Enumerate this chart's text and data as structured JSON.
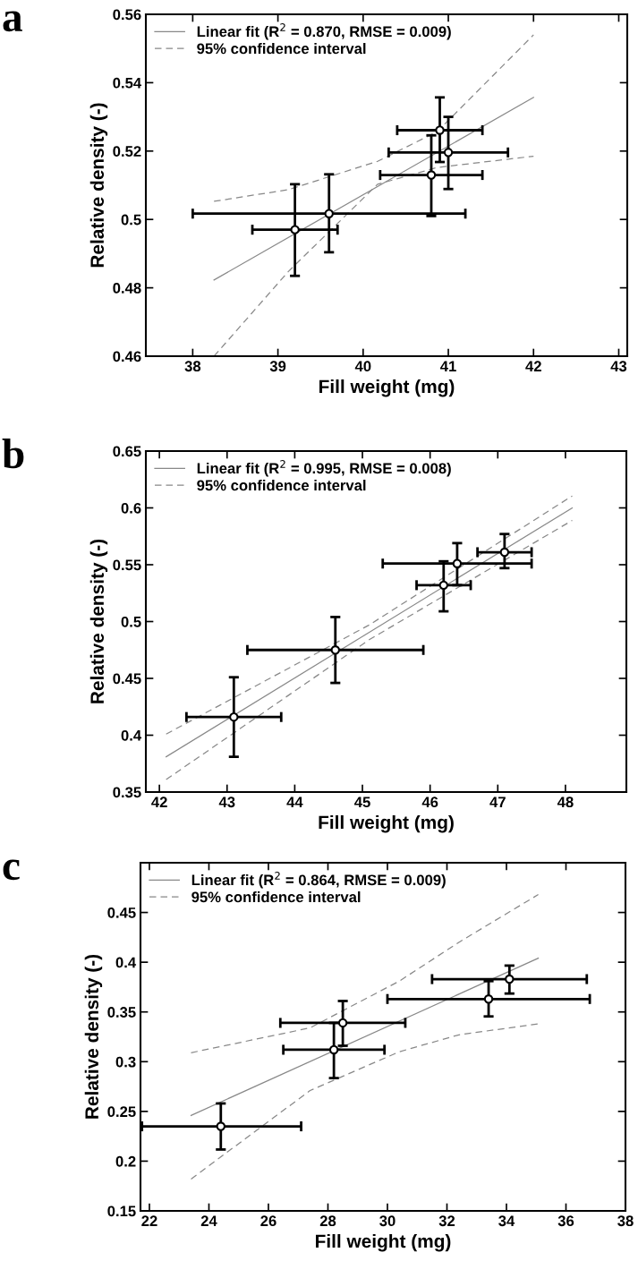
{
  "chart_data": [
    {
      "type": "scatter",
      "annotations": [
        "a"
      ],
      "xlabel": "Fill weight (mg)",
      "ylabel": "Relative density (-)",
      "xlim": [
        37.45,
        43.1
      ],
      "xticks": [
        38,
        39,
        40,
        41,
        42,
        43
      ],
      "ylim": [
        0.46,
        0.56
      ],
      "yticks": [
        0.46,
        0.48,
        0.5,
        0.52,
        0.54,
        0.56
      ],
      "legend": "top left",
      "grid": false,
      "series": [
        {
          "type": "line",
          "name": "Linear fit (R$^{2}$ = 0.870, RMSE = 0.009)",
          "color": "#888888",
          "line_style": "solid",
          "marker": "none",
          "x": [
            38.25,
            42.0
          ],
          "values": [
            0.4823,
            0.5357
          ]
        },
        {
          "type": "line",
          "name": "95% confidence interval",
          "color": "#888888",
          "line_style": "dashed",
          "marker": "none",
          "x": [
            38.25,
            39.12,
            40.17,
            40.87,
            42.0
          ],
          "values": [
            0.5053,
            0.5087,
            0.517,
            0.5257,
            0.554
          ]
        },
        {
          "type": "line",
          "color": "#888888",
          "line_style": "dashed",
          "marker": "none",
          "x": [
            38.25,
            39.12,
            40.17,
            40.87,
            42.0
          ],
          "values": [
            0.46,
            0.4847,
            0.5103,
            0.5152,
            0.5185
          ]
        },
        {
          "color": "#000000",
          "marker": "circle",
          "x": [
            39.2,
            39.6,
            40.8,
            41.0,
            40.9
          ],
          "values": [
            0.497,
            0.5017,
            0.513,
            0.5196,
            0.5261
          ],
          "errors": [
            [
              0.4835,
              0.5103
            ],
            [
              0.4904,
              0.5132
            ],
            [
              0.501,
              0.5246
            ],
            [
              0.5089,
              0.53
            ],
            [
              0.5168,
              0.5357
            ]
          ],
          "xerrors": [
            [
              38.7,
              39.7
            ],
            [
              38.0,
              41.2
            ],
            [
              40.2,
              41.4
            ],
            [
              40.3,
              41.7
            ],
            [
              40.4,
              41.4
            ]
          ]
        }
      ]
    },
    {
      "type": "scatter",
      "annotations": [
        "b"
      ],
      "xlabel": "Fill weight (mg)",
      "ylabel": "Relative density (-)",
      "xlim": [
        41.8,
        48.9
      ],
      "xticks": [
        42,
        43,
        44,
        45,
        46,
        47,
        48
      ],
      "ylim": [
        0.35,
        0.65
      ],
      "yticks": [
        0.35,
        0.4,
        0.45,
        0.5,
        0.55,
        0.6,
        0.65
      ],
      "legend": "top left",
      "grid": false,
      "series": [
        {
          "type": "line",
          "name": "Linear fit (R$^{2}$ = 0.995, RMSE = 0.008)",
          "color": "#888888",
          "line_style": "solid",
          "marker": "none",
          "x": [
            42.1,
            48.1
          ],
          "values": [
            0.381,
            0.6
          ]
        },
        {
          "type": "line",
          "name": "95% confidence interval",
          "color": "#888888",
          "line_style": "dashed",
          "marker": "none",
          "x": [
            42.1,
            45.1,
            48.1
          ],
          "values": [
            0.401,
            0.497,
            0.6105
          ]
        },
        {
          "type": "line",
          "color": "#888888",
          "line_style": "dashed",
          "marker": "none",
          "x": [
            42.1,
            45.1,
            48.1
          ],
          "values": [
            0.361,
            0.484,
            0.589
          ]
        },
        {
          "color": "#000000",
          "marker": "circle",
          "x": [
            43.1,
            44.6,
            46.2,
            46.4,
            47.1
          ],
          "values": [
            0.416,
            0.475,
            0.532,
            0.551,
            0.561
          ],
          "errors": [
            [
              0.381,
              0.451
            ],
            [
              0.446,
              0.504
            ],
            [
              0.509,
              0.553
            ],
            [
              0.532,
              0.569
            ],
            [
              0.547,
              0.577
            ]
          ],
          "xerrors": [
            [
              42.4,
              43.8
            ],
            [
              43.3,
              45.9
            ],
            [
              45.8,
              46.6
            ],
            [
              45.3,
              47.5
            ],
            [
              46.7,
              47.5
            ]
          ]
        }
      ]
    },
    {
      "type": "scatter",
      "annotations": [
        "c"
      ],
      "xlabel": "Fill weight (mg)",
      "ylabel": "Relative density (-)",
      "xlim": [
        21.7,
        38
      ],
      "xticks": [
        22,
        24,
        26,
        28,
        30,
        32,
        34,
        36,
        38
      ],
      "ylim": [
        0.15,
        0.5
      ],
      "yticks": [
        0.15,
        0.2,
        0.25,
        0.3,
        0.35,
        0.4,
        0.45,
        {
          "value": 0.5,
          "label": null
        }
      ],
      "legend": "top left",
      "grid": false,
      "series": [
        {
          "type": "line",
          "name": "Linear fit (R$^{2}$ = 0.864, RMSE = 0.009)",
          "color": "#888888",
          "line_style": "solid",
          "marker": "none",
          "x": [
            23.4,
            35.07
          ],
          "values": [
            0.246,
            0.404
          ]
        },
        {
          "type": "line",
          "name": "95% confidence interval",
          "color": "#888888",
          "line_style": "dashed",
          "marker": "none",
          "x": [
            23.4,
            27.4,
            30.4,
            32.4,
            35.07
          ],
          "values": [
            0.309,
            0.334,
            0.381,
            0.42,
            0.468
          ]
        },
        {
          "type": "line",
          "color": "#888888",
          "line_style": "dashed",
          "marker": "none",
          "x": [
            23.4,
            27.4,
            30.4,
            32.4,
            35.07
          ],
          "values": [
            0.182,
            0.271,
            0.31,
            0.327,
            0.338
          ]
        },
        {
          "color": "#000000",
          "marker": "circle",
          "x": [
            24.4,
            28.2,
            28.5,
            33.4,
            34.1
          ],
          "values": [
            0.235,
            0.312,
            0.339,
            0.363,
            0.383
          ],
          "errors": [
            [
              0.2117,
              0.258
            ],
            [
              0.2835,
              0.339
            ],
            [
              0.316,
              0.361
            ],
            [
              0.3455,
              0.381
            ],
            [
              0.3685,
              0.3966
            ]
          ],
          "xerrors": [
            [
              21.75,
              27.1
            ],
            [
              26.5,
              29.9
            ],
            [
              26.4,
              30.6
            ],
            [
              30.0,
              36.8
            ],
            [
              31.5,
              36.7
            ]
          ]
        }
      ]
    }
  ]
}
